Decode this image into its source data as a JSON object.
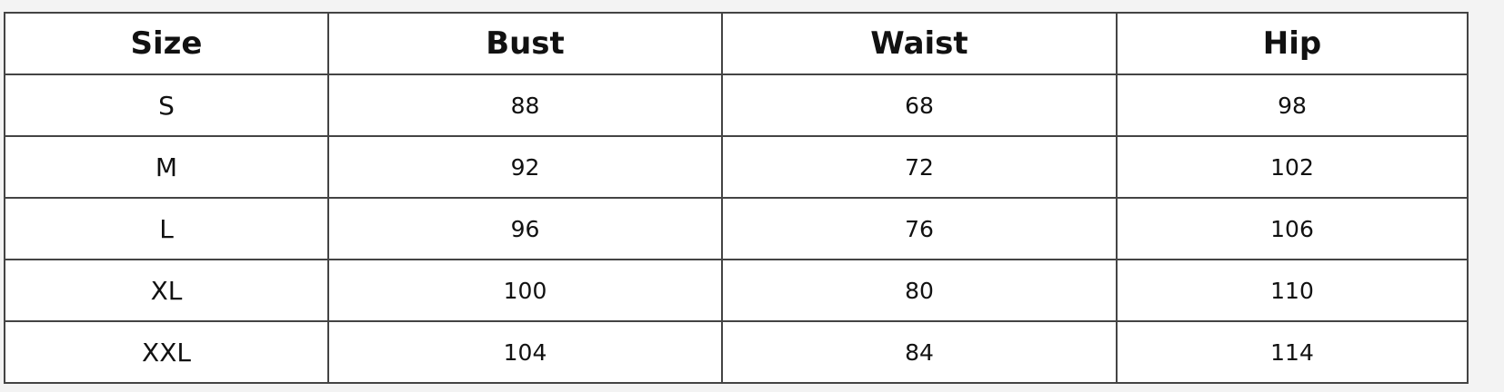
{
  "table": {
    "headers": [
      "Size",
      "Bust",
      "Waist",
      "Hip"
    ],
    "rows": [
      [
        "S",
        "88",
        "68",
        "98"
      ],
      [
        "M",
        "92",
        "72",
        "102"
      ],
      [
        "L",
        "96",
        "76",
        "106"
      ],
      [
        "XL",
        "100",
        "80",
        "110"
      ],
      [
        "XXL",
        "104",
        "84",
        "114"
      ]
    ]
  }
}
